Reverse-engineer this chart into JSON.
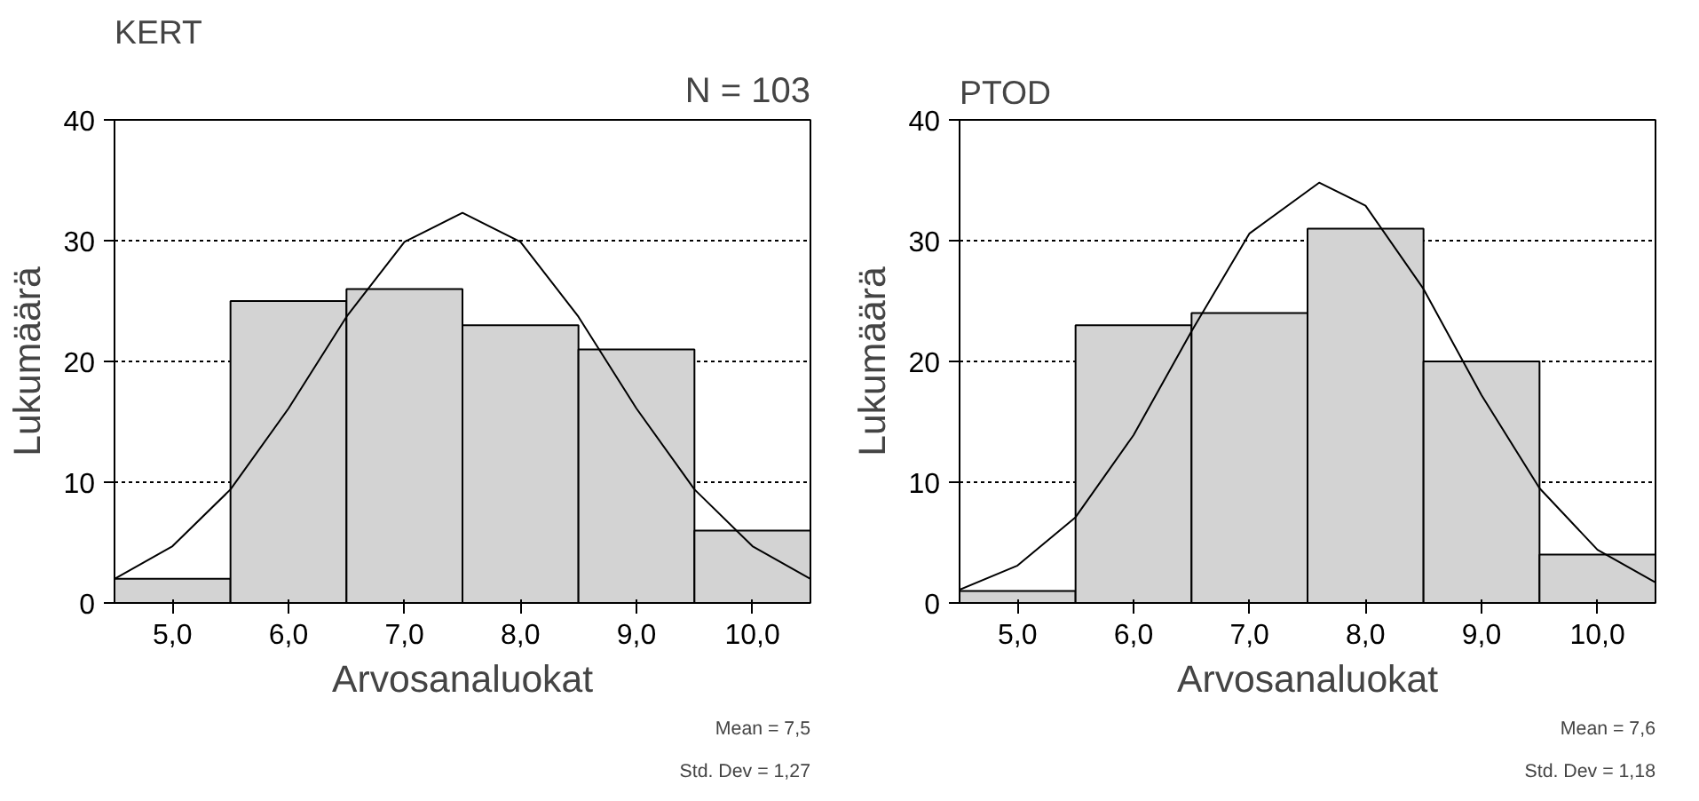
{
  "chart_data": [
    {
      "type": "histogram",
      "title": "KERT",
      "xlabel": "Arvosanaluokat",
      "ylabel": "Lukumäärä",
      "bins": [
        4.5,
        5.5,
        6.5,
        7.5,
        8.5,
        9.5,
        10.5
      ],
      "values": [
        2,
        25,
        26,
        23,
        21,
        6
      ],
      "color": "#d3d3d3",
      "xlim": [
        4.5,
        10.5
      ],
      "xticks": [
        {
          "value": 5,
          "label": "5,0"
        },
        {
          "value": 6,
          "label": "6,0"
        },
        {
          "value": 7,
          "label": "7,0"
        },
        {
          "value": 8,
          "label": "8,0"
        },
        {
          "value": 9,
          "label": "9,0"
        },
        {
          "value": 10,
          "label": "10,0"
        }
      ],
      "ylim": [
        0,
        40
      ],
      "yticks": [
        0,
        10,
        20,
        30,
        40
      ],
      "grid": "y",
      "series": [
        {
          "type": "line",
          "color": "#000000",
          "x": [
            4.5,
            5,
            5.5,
            6,
            6.5,
            7,
            7.5,
            8,
            8.5,
            9,
            9.5,
            10,
            10.5
          ],
          "values": [
            2.0,
            4.7,
            9.4,
            16.1,
            23.7,
            29.9,
            32.3,
            29.9,
            23.7,
            16.1,
            9.4,
            4.7,
            2.0
          ]
        }
      ],
      "annotations": [
        "N = 103",
        "Mean = 7,5",
        "Std. Dev = 1,27"
      ]
    },
    {
      "type": "histogram",
      "title": "PTOD",
      "xlabel": "Arvosanaluokat",
      "ylabel": "Lukumäärä",
      "bins": [
        4.5,
        5.5,
        6.5,
        7.5,
        8.5,
        9.5,
        10.5
      ],
      "values": [
        1,
        23,
        24,
        31,
        20,
        4
      ],
      "color": "#d3d3d3",
      "xlim": [
        4.5,
        10.5
      ],
      "xticks": [
        {
          "value": 5,
          "label": "5,0"
        },
        {
          "value": 6,
          "label": "6,0"
        },
        {
          "value": 7,
          "label": "7,0"
        },
        {
          "value": 8,
          "label": "8,0"
        },
        {
          "value": 9,
          "label": "9,0"
        },
        {
          "value": 10,
          "label": "10,0"
        }
      ],
      "ylim": [
        0,
        40
      ],
      "yticks": [
        0,
        10,
        20,
        30,
        40
      ],
      "grid": "y",
      "series": [
        {
          "type": "line",
          "color": "#000000",
          "x": [
            4.5,
            5,
            5.5,
            6,
            6.5,
            7,
            7.6,
            8,
            8.5,
            9,
            9.5,
            10,
            10.5
          ],
          "values": [
            1.1,
            3.1,
            7.1,
            13.9,
            22.5,
            30.6,
            34.8,
            32.9,
            26.0,
            17.2,
            9.5,
            4.4,
            1.7
          ]
        }
      ],
      "annotations": [
        "Mean = 7,6",
        "Std. Dev = 1,18"
      ]
    }
  ]
}
